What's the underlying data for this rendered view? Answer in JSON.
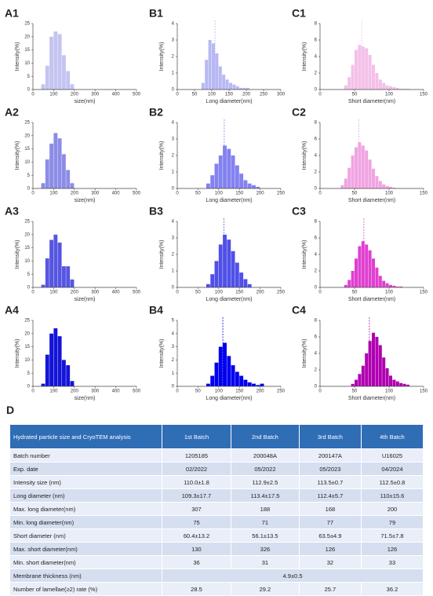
{
  "chart_data": [
    {
      "type": "histogram",
      "label": "A1",
      "xlabel": "size(nm)",
      "ylabel": "Intensity(%)",
      "color": "#c4c4f2",
      "xlim": [
        0,
        500
      ],
      "xticks": [
        0,
        100,
        200,
        300,
        400,
        500
      ],
      "ylim": [
        0,
        25
      ],
      "yticks": [
        0,
        5,
        10,
        15,
        20,
        25
      ],
      "bins": [
        40,
        60,
        80,
        100,
        120,
        140,
        160,
        180,
        200
      ],
      "counts": [
        2,
        9,
        20,
        22,
        21,
        13,
        7,
        2
      ]
    },
    {
      "type": "histogram",
      "label": "B1",
      "xlabel": "Long diameter(nm)",
      "ylabel": "Intensity(%)",
      "color": "#b8b8f4",
      "xlim": [
        0,
        300
      ],
      "xticks": [
        0,
        50,
        100,
        150,
        200,
        250,
        300
      ],
      "ylim": [
        0,
        4
      ],
      "yticks": [
        0,
        1,
        2,
        3,
        4
      ],
      "bins": [
        70,
        80,
        90,
        100,
        110,
        120,
        130,
        140,
        150,
        160,
        170,
        180,
        190,
        200,
        210
      ],
      "counts": [
        0.4,
        1.8,
        3.0,
        2.8,
        2.2,
        1.4,
        0.9,
        0.6,
        0.4,
        0.3,
        0.2,
        0.1,
        0.1,
        0.1
      ],
      "mean": 109.3
    },
    {
      "type": "histogram",
      "label": "C1",
      "xlabel": "Short diameter(nm)",
      "ylabel": "Intensity(%)",
      "color": "#f4c0e8",
      "xlim": [
        0,
        150
      ],
      "xticks": [
        0,
        50,
        100,
        150
      ],
      "ylim": [
        0,
        8
      ],
      "yticks": [
        0,
        2,
        4,
        6,
        8
      ],
      "bins": [
        35,
        40,
        45,
        50,
        55,
        60,
        65,
        70,
        75,
        80,
        85,
        90,
        95,
        100,
        105,
        110,
        115,
        120,
        125,
        130
      ],
      "counts": [
        0.5,
        1.5,
        3.0,
        4.8,
        5.4,
        5.2,
        5.0,
        4.2,
        3.0,
        2.0,
        1.2,
        0.8,
        0.5,
        0.4,
        0.3,
        0.2,
        0.1,
        0.1,
        0.1
      ],
      "mean": 60.4
    },
    {
      "type": "histogram",
      "label": "A2",
      "xlabel": "size(nm)",
      "ylabel": "Intensity(%)",
      "color": "#8c8ce8",
      "xlim": [
        0,
        500
      ],
      "xticks": [
        0,
        100,
        200,
        300,
        400,
        500
      ],
      "ylim": [
        0,
        25
      ],
      "yticks": [
        0,
        5,
        10,
        15,
        20,
        25
      ],
      "bins": [
        40,
        60,
        80,
        100,
        120,
        140,
        160,
        180,
        200
      ],
      "counts": [
        2,
        11,
        17,
        21,
        19,
        13,
        7,
        2
      ]
    },
    {
      "type": "histogram",
      "label": "B2",
      "xlabel": "Long diameter(nm)",
      "ylabel": "Intensity(%)",
      "color": "#8282f0",
      "xlim": [
        0,
        250
      ],
      "xticks": [
        0,
        50,
        100,
        150,
        200,
        250
      ],
      "ylim": [
        0,
        4
      ],
      "yticks": [
        0,
        1,
        2,
        3,
        4
      ],
      "bins": [
        70,
        80,
        90,
        100,
        110,
        120,
        130,
        140,
        150,
        160,
        170,
        180,
        190,
        200
      ],
      "counts": [
        0.3,
        0.8,
        1.5,
        2.0,
        2.6,
        2.4,
        2.0,
        1.4,
        0.9,
        0.5,
        0.3,
        0.2,
        0.1
      ],
      "mean": 113.4
    },
    {
      "type": "histogram",
      "label": "C2",
      "xlabel": "Short diameter(nm)",
      "ylabel": "Intensity(%)",
      "color": "#f0a4e2",
      "xlim": [
        0,
        150
      ],
      "xticks": [
        0,
        50,
        100,
        150
      ],
      "ylim": [
        0,
        8
      ],
      "yticks": [
        0,
        2,
        4,
        6,
        8
      ],
      "bins": [
        30,
        35,
        40,
        45,
        50,
        55,
        60,
        65,
        70,
        75,
        80,
        85,
        90,
        95,
        100,
        105,
        110
      ],
      "counts": [
        0.4,
        1.2,
        2.5,
        4.0,
        5.0,
        5.6,
        5.2,
        4.6,
        3.5,
        2.4,
        1.5,
        0.9,
        0.5,
        0.3,
        0.2,
        0.1
      ],
      "mean": 56.1
    },
    {
      "type": "histogram",
      "label": "A3",
      "xlabel": "size(nm)",
      "ylabel": "Intensity(%)",
      "color": "#5656e2",
      "xlim": [
        0,
        500
      ],
      "xticks": [
        0,
        100,
        200,
        300,
        400,
        500
      ],
      "ylim": [
        0,
        25
      ],
      "yticks": [
        0,
        5,
        10,
        15,
        20,
        25
      ],
      "bins": [
        40,
        60,
        80,
        100,
        120,
        140,
        160,
        180,
        200
      ],
      "counts": [
        1,
        11,
        18,
        20,
        17,
        8,
        8,
        3
      ]
    },
    {
      "type": "histogram",
      "label": "B3",
      "xlabel": "Long diameter(nm)",
      "ylabel": "Intensity(%)",
      "color": "#5050e8",
      "xlim": [
        0,
        250
      ],
      "xticks": [
        0,
        50,
        100,
        150,
        200,
        250
      ],
      "ylim": [
        0,
        4
      ],
      "yticks": [
        0,
        1,
        2,
        3,
        4
      ],
      "bins": [
        70,
        80,
        90,
        100,
        110,
        120,
        130,
        140,
        150,
        160,
        170,
        180
      ],
      "counts": [
        0.2,
        0.8,
        1.6,
        2.6,
        3.2,
        2.9,
        2.2,
        1.5,
        0.9,
        0.5,
        0.2
      ],
      "mean": 112.4
    },
    {
      "type": "histogram",
      "label": "C3",
      "xlabel": "Short diameter(nm)",
      "ylabel": "Intensity(%)",
      "color": "#e040d0",
      "xlim": [
        0,
        150
      ],
      "xticks": [
        0,
        50,
        100,
        150
      ],
      "ylim": [
        0,
        8
      ],
      "yticks": [
        0,
        2,
        4,
        6,
        8
      ],
      "bins": [
        35,
        40,
        45,
        50,
        55,
        60,
        65,
        70,
        75,
        80,
        85,
        90,
        95,
        100,
        105,
        110,
        115,
        120
      ],
      "counts": [
        0.3,
        0.9,
        2.0,
        3.5,
        5.0,
        5.6,
        5.2,
        4.5,
        3.5,
        2.4,
        1.4,
        0.8,
        0.5,
        0.3,
        0.2,
        0.1,
        0.1
      ],
      "mean": 63.5
    },
    {
      "type": "histogram",
      "label": "A4",
      "xlabel": "size(nm)",
      "ylabel": "Intensity(%)",
      "color": "#1414d8",
      "xlim": [
        0,
        500
      ],
      "xticks": [
        0,
        100,
        200,
        300,
        400,
        500
      ],
      "ylim": [
        0,
        25
      ],
      "yticks": [
        0,
        5,
        10,
        15,
        20,
        25
      ],
      "bins": [
        40,
        60,
        80,
        100,
        120,
        140,
        160,
        180,
        200
      ],
      "counts": [
        1,
        12,
        20,
        22,
        19,
        10,
        8,
        2
      ]
    },
    {
      "type": "histogram",
      "label": "B4",
      "xlabel": "Long diameter(nm)",
      "ylabel": "Intensity(%)",
      "color": "#0000ee",
      "xlim": [
        0,
        250
      ],
      "xticks": [
        0,
        50,
        100,
        150,
        200,
        250
      ],
      "ylim": [
        0,
        5
      ],
      "yticks": [
        0,
        1,
        2,
        3,
        4,
        5
      ],
      "bins": [
        70,
        80,
        90,
        100,
        110,
        120,
        130,
        140,
        150,
        160,
        170,
        180,
        190,
        200,
        210
      ],
      "counts": [
        0.2,
        0.8,
        1.8,
        3.0,
        3.3,
        2.3,
        1.6,
        1.1,
        0.8,
        0.5,
        0.3,
        0.2,
        0.1,
        0.2
      ],
      "mean": 110
    },
    {
      "type": "histogram",
      "label": "C4",
      "xlabel": "Short diameter(nm)",
      "ylabel": "Intensity(%)",
      "color": "#b000b0",
      "xlim": [
        0,
        150
      ],
      "xticks": [
        0,
        50,
        100,
        150
      ],
      "ylim": [
        0,
        8
      ],
      "yticks": [
        0,
        2,
        4,
        6,
        8
      ],
      "bins": [
        45,
        50,
        55,
        60,
        65,
        70,
        75,
        80,
        85,
        90,
        95,
        100,
        105,
        110,
        115,
        120,
        125,
        130
      ],
      "counts": [
        0.3,
        0.8,
        1.5,
        2.5,
        4.0,
        5.5,
        6.5,
        6.0,
        5.0,
        3.5,
        2.2,
        1.3,
        0.8,
        0.6,
        0.4,
        0.3,
        0.2
      ],
      "mean": 71.5
    }
  ],
  "panel_d": {
    "label": "D",
    "table": {
      "header": [
        "Hydrated particle size and CryoTEM analysis",
        "1st Batch",
        "2nd Batch",
        "3rd Batch",
        "4th Batch"
      ],
      "rows": [
        [
          "Batch number",
          "1205185",
          "200048A",
          "200147A",
          "U16025"
        ],
        [
          "Exp. date",
          "02/2022",
          "05/2022",
          "05/2023",
          "04/2024"
        ],
        [
          "Intensity size (nm)",
          "110.0±1.8",
          "112.9±2.5",
          "113.5±0.7",
          "112.5±0.8"
        ],
        [
          "Long diameter (nm)",
          "109.3±17.7",
          "113.4±17.5",
          "112.4±5.7",
          "110±15.6"
        ],
        [
          "Max. long diameter(nm)",
          "307",
          "188",
          "168",
          "200"
        ],
        [
          "Min. long diameter(nm)",
          "75",
          "71",
          "77",
          "79"
        ],
        [
          "Short diameter (nm)",
          "60.4±13.2",
          "56.1±13.5",
          "63.5±4.9",
          "71.5±7.8"
        ],
        [
          "Max. short diameter(nm)",
          "130",
          "326",
          "126",
          "126"
        ],
        [
          "Min. short diameter(nm)",
          "36",
          "31",
          "32",
          "33"
        ],
        [
          "Membrane thickness (nm)",
          "4.9±0.5"
        ],
        [
          "Number of lamellae(≥2) rate (%)",
          "28.5",
          "29.2",
          "25.7",
          "36.2"
        ]
      ]
    }
  }
}
